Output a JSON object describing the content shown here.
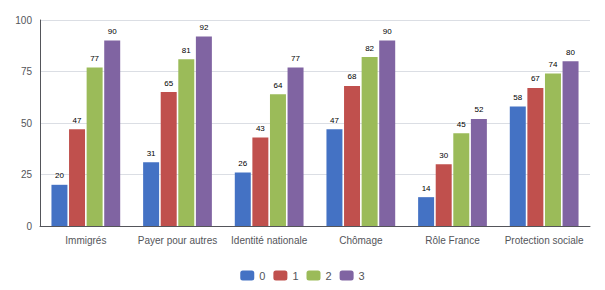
{
  "chart_data": {
    "type": "bar",
    "categories": [
      "Immigrés",
      "Payer pour autres",
      "Identité nationale",
      "Chômage",
      "Rôle France",
      "Protection sociale"
    ],
    "series": [
      {
        "name": "0",
        "color": "#4472C4",
        "values": [
          20,
          31,
          26,
          47,
          14,
          58
        ]
      },
      {
        "name": "1",
        "color": "#C0504D",
        "values": [
          47,
          65,
          43,
          68,
          30,
          67
        ]
      },
      {
        "name": "2",
        "color": "#9BBB59",
        "values": [
          77,
          81,
          64,
          82,
          45,
          74
        ]
      },
      {
        "name": "3",
        "color": "#8064A2",
        "values": [
          90,
          92,
          77,
          90,
          52,
          80
        ]
      }
    ],
    "ylim": [
      0,
      100
    ],
    "yticks": [
      0,
      25,
      50,
      75,
      100
    ],
    "grid": true,
    "legend": "bottom",
    "data_labels": true
  }
}
